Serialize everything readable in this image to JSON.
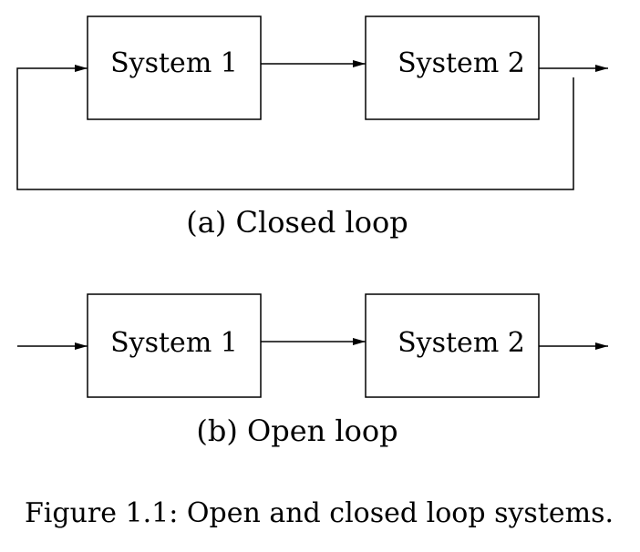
{
  "closed_loop": {
    "system1_label": "System 1",
    "system2_label": "System 2",
    "caption": "(a) Closed loop"
  },
  "open_loop": {
    "system1_label": "System 1",
    "system2_label": "System 2",
    "caption": "(b) Open loop"
  },
  "figure_caption": "Figure 1.1: Open and closed loop systems."
}
